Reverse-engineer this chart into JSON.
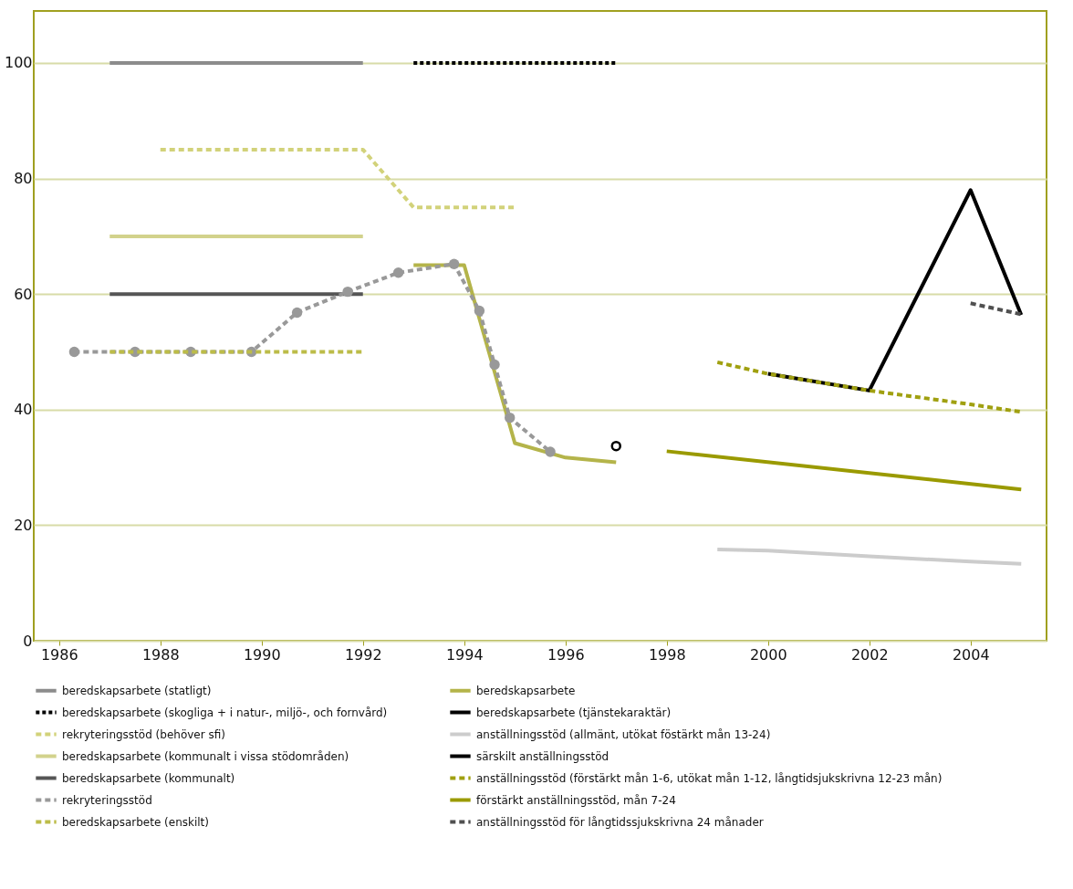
{
  "chart_data": {
    "type": "line",
    "xlim": [
      1985.5,
      2005.5
    ],
    "xticks": [
      1986,
      1988,
      1990,
      1992,
      1994,
      1996,
      1998,
      2000,
      2002,
      2004
    ],
    "ylim": [
      0,
      109
    ],
    "yticks": [
      0,
      20,
      40,
      60,
      80,
      100
    ],
    "grid": "y",
    "legend": "bottom",
    "series": [
      {
        "name": "beredskapsarbete (statligt)",
        "color": "#8c8c8c",
        "line_style": "solid",
        "x": [
          1987,
          1992
        ],
        "values": [
          100,
          100
        ]
      },
      {
        "name": "beredskapsarbete",
        "color": "#b4b44a",
        "line_style": "solid",
        "x": [
          1993,
          1994,
          1995,
          1996,
          1997
        ],
        "values": [
          65,
          65,
          34.2,
          31.7,
          30.9
        ]
      },
      {
        "name": "beredskapsarbete (skogliga + i natur-, miljö-, och fornvård)",
        "color": "#000000",
        "line_style": "dotted",
        "x": [
          1993,
          1997
        ],
        "values": [
          100,
          100
        ]
      },
      {
        "name": "beredskapsarbete (tjänstekaraktär)",
        "type": "scatter",
        "color": "#000000",
        "marker": "circle",
        "x": [
          1997
        ],
        "values": [
          33.7
        ]
      },
      {
        "name": "rekryteringsstöd (behöver sfi)",
        "color": "#d2d27a",
        "line_style": "dashed",
        "x": [
          1988,
          1992,
          1993,
          1995
        ],
        "values": [
          85,
          85,
          75,
          75
        ]
      },
      {
        "name": "anställningsstöd (allmänt, utökat föstärkt mån 13-24)",
        "color": "#cccccc",
        "line_style": "solid",
        "x": [
          1999,
          2000,
          2002,
          2004,
          2005
        ],
        "values": [
          15.8,
          15.6,
          14.6,
          13.7,
          13.3
        ]
      },
      {
        "name": "beredskapsarbete (kommunalt i vissa stödområden)",
        "color": "#d2d28c",
        "line_style": "solid",
        "x": [
          1987,
          1992
        ],
        "values": [
          70,
          70
        ]
      },
      {
        "name": "särskilt anställningsstöd",
        "color": "#000000",
        "line_style": "solid",
        "x": [
          2000,
          2002,
          2004,
          2005
        ],
        "values": [
          46.2,
          43.3,
          78,
          56.4
        ]
      },
      {
        "name": "beredskapsarbete (kommunalt)",
        "color": "#555555",
        "line_style": "solid",
        "x": [
          1987,
          1992
        ],
        "values": [
          60,
          60
        ]
      },
      {
        "name": "anställningsstöd (förstärkt mån 1-6, utökat mån 1-12, långtidsjukskrivna 12-23 mån)",
        "color": "#a0a010",
        "line_style": "dashed",
        "x": [
          1999,
          2000,
          2002,
          2004,
          2005
        ],
        "values": [
          48.2,
          46.2,
          43.3,
          40.9,
          39.6
        ]
      },
      {
        "name": "rekryteringsstöd",
        "color": "#999999",
        "line_style": "dashed",
        "marker": "circle",
        "x": [
          1986.3,
          1987.5,
          1988.6,
          1989.8,
          1990.7,
          1991.7,
          1992.7,
          1993.8,
          1994.3,
          1994.6,
          1994.9,
          1995.7
        ],
        "values": [
          50,
          50,
          50,
          50,
          56.8,
          60.4,
          63.7,
          65.2,
          57.1,
          47.8,
          38.6,
          32.7
        ]
      },
      {
        "name": "förstärkt anställningsstöd, mån 7-24",
        "color": "#9a9a00",
        "line_style": "solid",
        "x": [
          1998,
          2005
        ],
        "values": [
          32.8,
          26.2
        ]
      },
      {
        "name": "beredskapsarbete (enskilt)",
        "color": "#bcbc48",
        "line_style": "dashed",
        "x": [
          1987,
          1992
        ],
        "values": [
          50,
          50
        ]
      },
      {
        "name": "anställningsstöd för långtidssjukskrivna 24 månader",
        "color": "#505050",
        "line_style": "dashed",
        "x": [
          2004,
          2005
        ],
        "values": [
          58.4,
          56.5
        ]
      }
    ]
  }
}
